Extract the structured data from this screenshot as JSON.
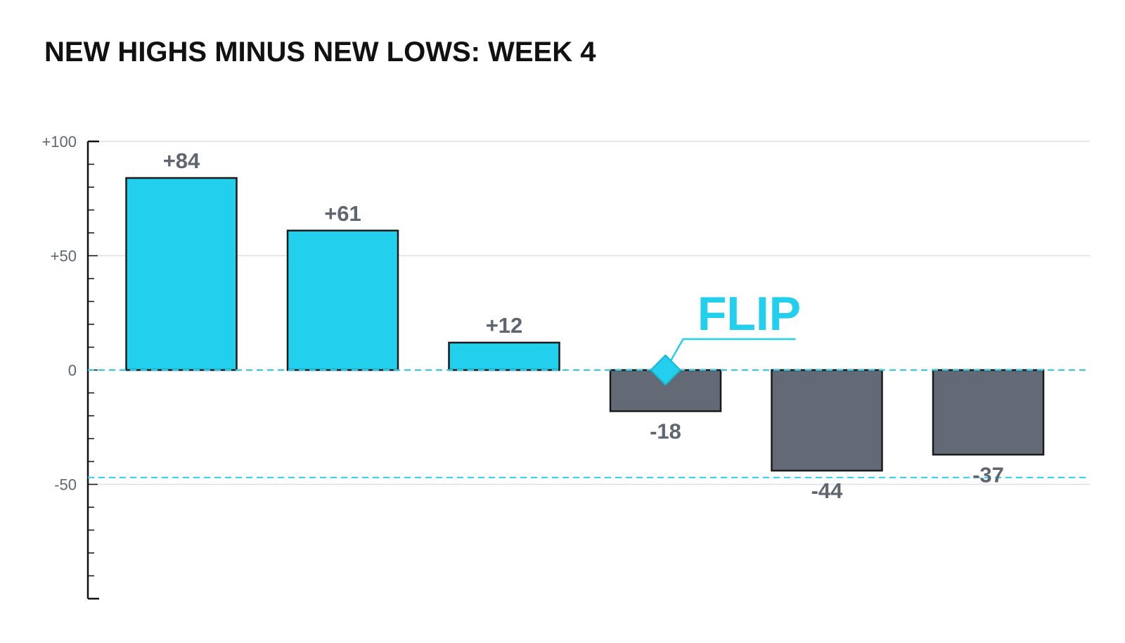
{
  "chart_data": {
    "type": "bar",
    "title": "NEW HIGHS MINUS NEW LOWS: WEEK 4",
    "xlabel": "",
    "ylabel": "",
    "ylim": [
      -100,
      100
    ],
    "yticks": [
      100,
      50,
      0,
      -50
    ],
    "ytick_labels": [
      "+100",
      "+50",
      "0",
      "-50"
    ],
    "values": [
      84,
      61,
      12,
      -18,
      -44,
      -37
    ],
    "value_labels": [
      "+84",
      "+61",
      "+12",
      "-18",
      "-44",
      "-37"
    ],
    "reference_lines": [
      0,
      -47
    ],
    "annotation": {
      "text": "FLIP",
      "value": 0,
      "bar_index": 3
    },
    "grid": true,
    "legend": "none"
  },
  "colors": {
    "positive": "#22d0ee",
    "negative": "#636a75",
    "accent": "#22d0ee",
    "bar_stroke": "#1a1a1a",
    "grid": "#dcdfe3",
    "axis": "#111111"
  }
}
